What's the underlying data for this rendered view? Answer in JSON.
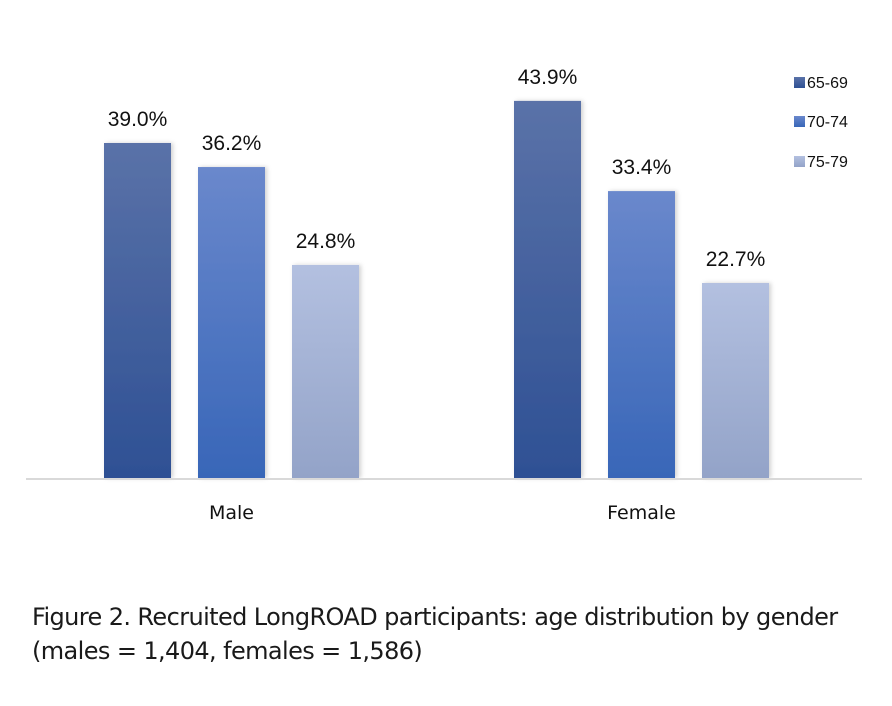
{
  "chart_data": {
    "type": "bar",
    "title": "",
    "xlabel": "",
    "ylabel": "",
    "ylim": [
      0,
      50
    ],
    "grid": false,
    "categories": [
      "Male",
      "Female"
    ],
    "series": [
      {
        "name": "65-69",
        "values": [
          39.0,
          43.9
        ],
        "labels": [
          "39.0%",
          "43.9%"
        ],
        "color_top": "#5a72a8",
        "color_bottom": "#2e5094"
      },
      {
        "name": "70-74",
        "values": [
          36.2,
          33.4
        ],
        "labels": [
          "36.2%",
          "33.4%"
        ],
        "color_top": "#6a88cc",
        "color_bottom": "#3866b8"
      },
      {
        "name": "75-79",
        "values": [
          24.8,
          22.7
        ],
        "labels": [
          "24.8%",
          "22.7%"
        ],
        "color_top": "#b3c0e0",
        "color_bottom": "#93a3c8"
      }
    ],
    "legend": {
      "position": "top-right",
      "entries": [
        "65-69",
        "70-74",
        "75-79"
      ]
    },
    "axis_color": "#d9d9d9"
  },
  "caption": "Figure 2. Recruited LongROAD participants: age distribution by gender (males = 1,404, females = 1,586)"
}
